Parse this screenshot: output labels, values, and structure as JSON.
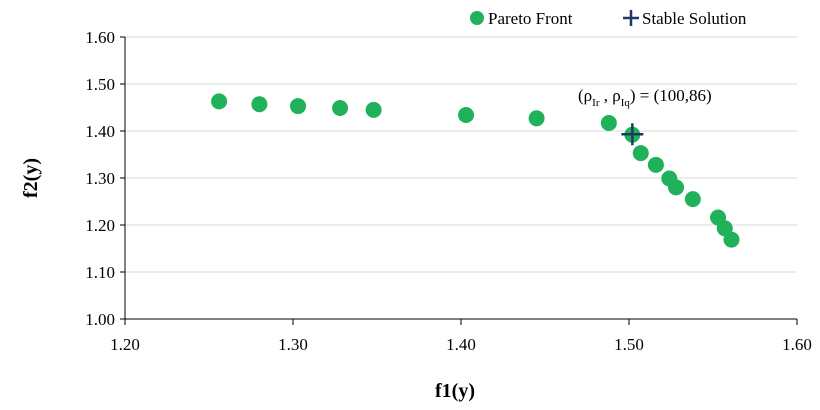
{
  "chart_data": {
    "type": "scatter",
    "title": "",
    "xlabel": "f1(y)",
    "ylabel": "f2(y)",
    "xlim": [
      1.2,
      1.6
    ],
    "ylim": [
      1.0,
      1.6
    ],
    "x_ticks": [
      "1.20",
      "1.30",
      "1.40",
      "1.50",
      "1.60"
    ],
    "y_ticks": [
      "1.00",
      "1.10",
      "1.20",
      "1.30",
      "1.40",
      "1.50",
      "1.60"
    ],
    "grid": "horizontal",
    "legend_position": "top-right",
    "series": [
      {
        "name": "Pareto Front",
        "marker": "circle",
        "color": "#1fb25a",
        "x": [
          1.256,
          1.28,
          1.303,
          1.328,
          1.348,
          1.403,
          1.445,
          1.488,
          1.502,
          1.507,
          1.516,
          1.524,
          1.528,
          1.538,
          1.553,
          1.557,
          1.561
        ],
        "y": [
          1.463,
          1.457,
          1.453,
          1.449,
          1.445,
          1.434,
          1.427,
          1.417,
          1.392,
          1.353,
          1.328,
          1.299,
          1.28,
          1.255,
          1.216,
          1.193,
          1.169
        ]
      },
      {
        "name": "Stable Solution",
        "marker": "plus",
        "color": "#203864",
        "x": [
          1.502
        ],
        "y": [
          1.393
        ]
      }
    ],
    "annotation": {
      "open": "(ρ",
      "sub1": "Ir",
      "mid": " , ρ",
      "sub2": "Iq",
      "close": ") = (100,86)"
    }
  }
}
